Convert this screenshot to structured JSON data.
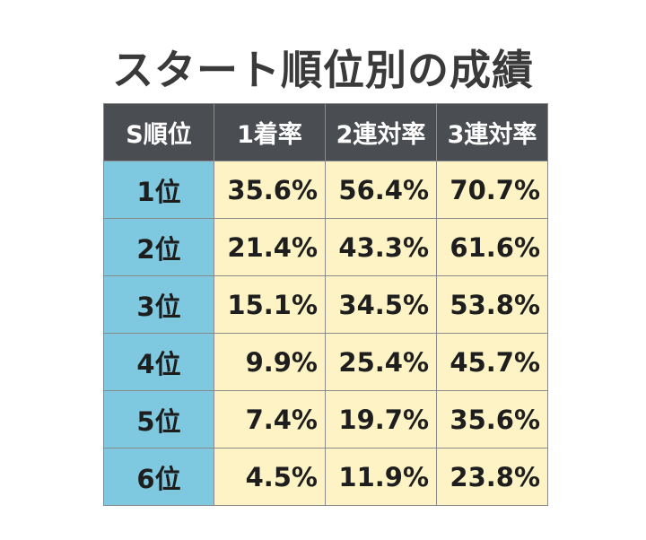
{
  "title": "スタート順位別の成績",
  "table": {
    "header": [
      "S順位",
      "1着率",
      "2連対率",
      "3連対率"
    ],
    "rows": [
      [
        "1位",
        "35.6%",
        "56.4%",
        "70.7%"
      ],
      [
        "2位",
        "21.4%",
        "43.3%",
        "61.6%"
      ],
      [
        "3位",
        "15.1%",
        "34.5%",
        "53.8%"
      ],
      [
        "4位",
        "9.9%",
        "25.4%",
        "45.7%"
      ],
      [
        "5位",
        "7.4%",
        "19.7%",
        "35.6%"
      ],
      [
        "6位",
        "4.5%",
        "11.9%",
        "23.8%"
      ]
    ]
  }
}
